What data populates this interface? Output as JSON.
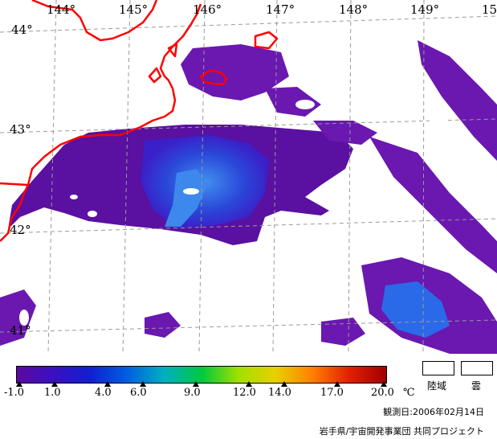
{
  "map": {
    "lon_labels": [
      "144°",
      "145°",
      "146°",
      "147°",
      "148°",
      "149°",
      "15"
    ],
    "lat_labels": [
      "44°",
      "43°",
      "42°",
      "41°"
    ],
    "colors": {
      "sea_cold": "#5a10a0",
      "sea_mid": "#3a20c8",
      "sea_warm": "#2a5ce8",
      "coastline": "#ff0000",
      "grid": "#9a9a9a",
      "land_cloud": "#ffffff"
    }
  },
  "colorbar": {
    "ticks": [
      "-1.0",
      "1.0",
      "4.0",
      "6.0",
      "9.0",
      "12.0",
      "14.0",
      "17.0",
      "20.0"
    ],
    "unit": "℃",
    "min": -1.0,
    "max": 20.0,
    "stops": [
      "#5a0aa0",
      "#3a10c0",
      "#1020d0",
      "#0060e0",
      "#00b0c0",
      "#00c840",
      "#a0e000",
      "#e8d000",
      "#ff8000",
      "#e02000",
      "#a00000"
    ]
  },
  "legend": {
    "land_label": "陸域",
    "cloud_label": "雲"
  },
  "footer": {
    "date_text": "観測日:2006年02月14日",
    "credit_text": "岩手県/宇宙開発事業団 共同プロジェクト"
  }
}
